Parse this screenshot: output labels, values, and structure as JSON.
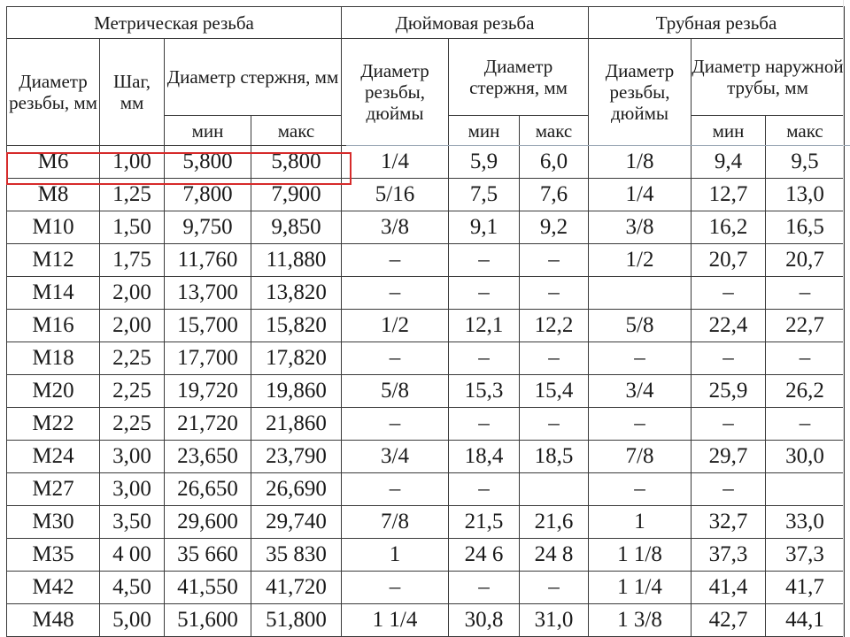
{
  "header": {
    "metric_group": "Метрическая резьба",
    "inch_group": "Дюймовая резьба",
    "pipe_group": "Трубная резьба",
    "thread_diam_mm": "Диаметр резьбы, мм",
    "pitch_mm": "Шаг, мм",
    "rod_diam_mm": "Диаметр стержня, мм",
    "thread_diam_in": "Диаметр резьбы, дюймы",
    "rod_diam_mm_2": "Диаметр стержня, мм",
    "thread_diam_in_2": "Диаметр резьбы, дюймы",
    "pipe_outer_diam": "Диаметр наружной трубы, мм",
    "min": "мин",
    "max": "макс"
  },
  "rows": [
    [
      "М6",
      "1,00",
      "5,800",
      "5,800",
      "1/4",
      "5,9",
      "6,0",
      "1/8",
      "9,4",
      "9,5"
    ],
    [
      "М8",
      "1,25",
      "7,800",
      "7,900",
      "5/16",
      "7,5",
      "7,6",
      "1/4",
      "12,7",
      "13,0"
    ],
    [
      "М10",
      "1,50",
      "9,750",
      "9,850",
      "3/8",
      "9,1",
      "9,2",
      "3/8",
      "16,2",
      "16,5"
    ],
    [
      "М12",
      "1,75",
      "11,760",
      "11,880",
      "–",
      "–",
      "–",
      "1/2",
      "20,7",
      "20,7"
    ],
    [
      "М14",
      "2,00",
      "13,700",
      "13,820",
      "–",
      "–",
      "–",
      "",
      "–",
      "–"
    ],
    [
      "М16",
      "2,00",
      "15,700",
      "15,820",
      "1/2",
      "12,1",
      "12,2",
      "5/8",
      "22,4",
      "22,7"
    ],
    [
      "М18",
      "2,25",
      "17,700",
      "17,820",
      "–",
      "–",
      "–",
      "–",
      "–",
      "–"
    ],
    [
      "М20",
      "2,25",
      "19,720",
      "19,860",
      "5/8",
      "15,3",
      "15,4",
      "3/4",
      "25,9",
      "26,2"
    ],
    [
      "М22",
      "2,25",
      "21,720",
      "21,860",
      "–",
      "–",
      "–",
      "–",
      "–",
      "–"
    ],
    [
      "М24",
      "3,00",
      "23,650",
      "23,790",
      "3/4",
      "18,4",
      "18,5",
      "7/8",
      "29,7",
      "30,0"
    ],
    [
      "М27",
      "3,00",
      "26,650",
      "26,690",
      "–",
      "–",
      "",
      "–",
      "–",
      ""
    ],
    [
      "М30",
      "3,50",
      "29,600",
      "29,740",
      "7/8",
      "21,5",
      "21,6",
      "1",
      "32,7",
      "33,0"
    ],
    [
      "М35",
      "4 00",
      "35 660",
      "35 830",
      "1",
      "24 6",
      "24 8",
      "1 1/8",
      "37,3",
      "37,3"
    ],
    [
      "М42",
      "4,50",
      "41,550",
      "41,720",
      "–",
      "–",
      "–",
      "1 1/4",
      "41,4",
      "41,7"
    ],
    [
      "М48",
      "5,00",
      "51,600",
      "51,800",
      "1 1/4",
      "30,8",
      "31,0",
      "1 3/8",
      "42,7",
      "44,1"
    ]
  ],
  "highlight": {
    "row_index": 0,
    "color": "#d62b2b"
  }
}
